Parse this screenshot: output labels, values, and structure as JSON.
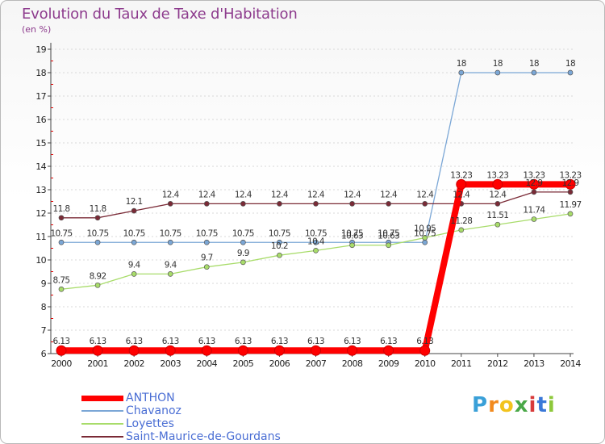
{
  "header": {
    "title": "Evolution du Taux de Taxe d'Habitation",
    "unit": "(en %)"
  },
  "logo": {
    "letters": [
      "P",
      "r",
      "o",
      "x",
      "i",
      "t",
      "i"
    ],
    "colors": [
      "#3aa0d8",
      "#f28a1e",
      "#f2c31e",
      "#4aa848",
      "#d83a3a",
      "#3a78d8",
      "#8dc83a"
    ]
  },
  "chart_data": {
    "type": "line",
    "x": [
      "2000",
      "2001",
      "2002",
      "2003",
      "2004",
      "2005",
      "2006",
      "2007",
      "2008",
      "2009",
      "2010",
      "2011",
      "2012",
      "2013",
      "2014"
    ],
    "yticks": [
      "6",
      "7",
      "8",
      "9",
      "10",
      "11",
      "12",
      "13",
      "14",
      "15",
      "16",
      "17",
      "18",
      "19"
    ],
    "ylim": [
      6,
      19
    ],
    "legend_position": "bottom-left",
    "series": [
      {
        "name": "ANTHON",
        "color": "#ff0000",
        "values": [
          6.13,
          6.13,
          6.13,
          6.13,
          6.13,
          6.13,
          6.13,
          6.13,
          6.13,
          6.13,
          6.13,
          13.23,
          13.23,
          13.23,
          13.23
        ],
        "labels": [
          "6.13",
          "6.13",
          "6.13",
          "6.13",
          "6.13",
          "6.13",
          "6.13",
          "6.13",
          "6.13",
          "6.13",
          "6.13",
          "13.23",
          "13.23",
          "13.23",
          "13.23"
        ]
      },
      {
        "name": "Chavanoz",
        "color": "#7ba7d6",
        "values": [
          10.75,
          10.75,
          10.75,
          10.75,
          10.75,
          10.75,
          10.75,
          10.75,
          10.75,
          10.75,
          10.75,
          18,
          18,
          18,
          18
        ],
        "labels": [
          "10.75",
          "10.75",
          "10.75",
          "10.75",
          "10.75",
          "10.75",
          "10.75",
          "10.75",
          "10.75",
          "10.75",
          "10.75",
          "18",
          "18",
          "18",
          "18"
        ]
      },
      {
        "name": "Loyettes",
        "color": "#a8dc6a",
        "values": [
          8.75,
          8.92,
          9.4,
          9.4,
          9.7,
          9.9,
          10.2,
          10.4,
          10.63,
          10.63,
          10.95,
          11.28,
          11.51,
          11.74,
          11.97
        ],
        "labels": [
          "8.75",
          "8.92",
          "9.4",
          "9.4",
          "9.7",
          "9.9",
          "10.2",
          "10.4",
          "10.63",
          "10.63",
          "10.95",
          "11.28",
          "11.51",
          "11.74",
          "11.97"
        ]
      },
      {
        "name": "Saint-Maurice-de-Gourdans",
        "color": "#7a2a36",
        "values": [
          11.8,
          11.8,
          12.1,
          12.4,
          12.4,
          12.4,
          12.4,
          12.4,
          12.4,
          12.4,
          12.4,
          12.4,
          12.4,
          12.9,
          12.9
        ],
        "labels": [
          "11.8",
          "11.8",
          "12.1",
          "12.4",
          "12.4",
          "12.4",
          "12.4",
          "12.4",
          "12.4",
          "12.4",
          "12.4",
          "12.4",
          "12.4",
          "12.9",
          "12.9"
        ]
      }
    ]
  }
}
